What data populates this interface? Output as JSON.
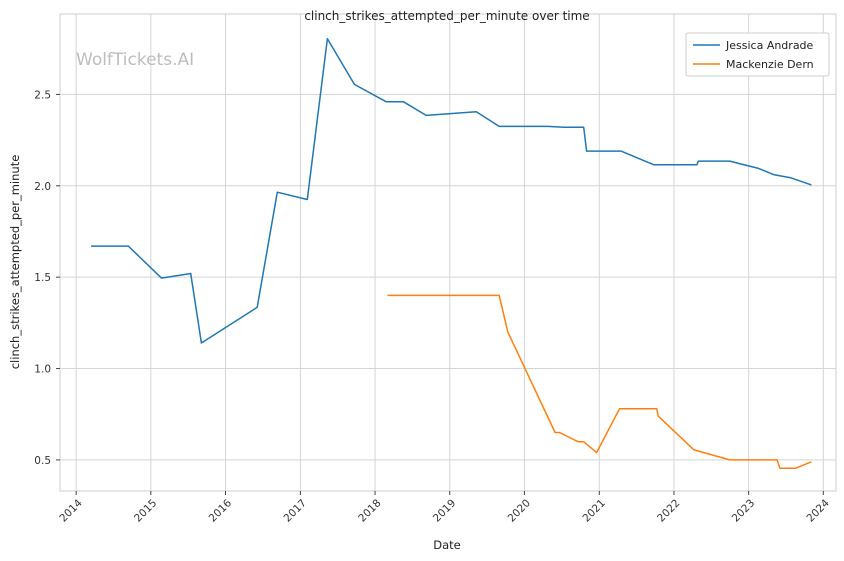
{
  "chart_data": {
    "type": "line",
    "title": "clinch_strikes_attempted_per_minute over time",
    "xlabel": "Date",
    "ylabel": "clinch_strikes_attempted_per_minute",
    "watermark": "WolfTickets.AI",
    "x_ticks": [
      "2014",
      "2015",
      "2016",
      "2017",
      "2018",
      "2019",
      "2020",
      "2021",
      "2022",
      "2023",
      "2024"
    ],
    "y_ticks": [
      "0.5",
      "1.0",
      "1.5",
      "2.0",
      "2.5"
    ],
    "ylim": [
      0.33,
      2.94
    ],
    "xlim": [
      "2013-10-14",
      "2024-03-03"
    ],
    "grid": true,
    "legend_position": "top-right",
    "series": [
      {
        "name": "Jessica Andrade",
        "color": "#1f77b4",
        "points": [
          [
            "2014-03-15",
            1.67
          ],
          [
            "2014-09-13",
            1.67
          ],
          [
            "2015-02-22",
            1.495
          ],
          [
            "2015-07-15",
            1.52
          ],
          [
            "2015-09-05",
            1.14
          ],
          [
            "2016-06-04",
            1.335
          ],
          [
            "2016-09-10",
            1.965
          ],
          [
            "2017-02-04",
            1.925
          ],
          [
            "2017-05-13",
            2.805
          ],
          [
            "2017-09-22",
            2.555
          ],
          [
            "2018-02-24",
            2.46
          ],
          [
            "2018-05-19",
            2.46
          ],
          [
            "2018-09-08",
            2.385
          ],
          [
            "2019-05-11",
            2.405
          ],
          [
            "2019-08-31",
            2.325
          ],
          [
            "2020-04-25",
            2.325
          ],
          [
            "2020-07-12",
            2.32
          ],
          [
            "2020-10-17",
            2.32
          ],
          [
            "2020-10-31",
            2.19
          ],
          [
            "2021-04-17",
            2.19
          ],
          [
            "2021-09-25",
            2.115
          ],
          [
            "2022-04-23",
            2.115
          ],
          [
            "2022-04-30",
            2.135
          ],
          [
            "2022-09-30",
            2.135
          ],
          [
            "2023-02-18",
            2.095
          ],
          [
            "2023-05-06",
            2.06
          ],
          [
            "2023-07-22",
            2.045
          ],
          [
            "2023-11-04",
            2.005
          ]
        ]
      },
      {
        "name": "Mackenzie Dern",
        "color": "#ff7f0e",
        "points": [
          [
            "2018-03-03",
            1.4
          ],
          [
            "2019-08-31",
            1.4
          ],
          [
            "2019-10-12",
            1.2
          ],
          [
            "2020-05-30",
            0.65
          ],
          [
            "2020-06-20",
            0.65
          ],
          [
            "2020-09-19",
            0.6
          ],
          [
            "2020-10-17",
            0.6
          ],
          [
            "2020-12-19",
            0.54
          ],
          [
            "2021-04-10",
            0.78
          ],
          [
            "2021-10-09",
            0.78
          ],
          [
            "2021-10-16",
            0.74
          ],
          [
            "2022-04-09",
            0.555
          ],
          [
            "2022-10-01",
            0.5
          ],
          [
            "2023-05-20",
            0.5
          ],
          [
            "2023-06-03",
            0.455
          ],
          [
            "2023-08-19",
            0.455
          ],
          [
            "2023-11-04",
            0.49
          ]
        ]
      }
    ]
  }
}
